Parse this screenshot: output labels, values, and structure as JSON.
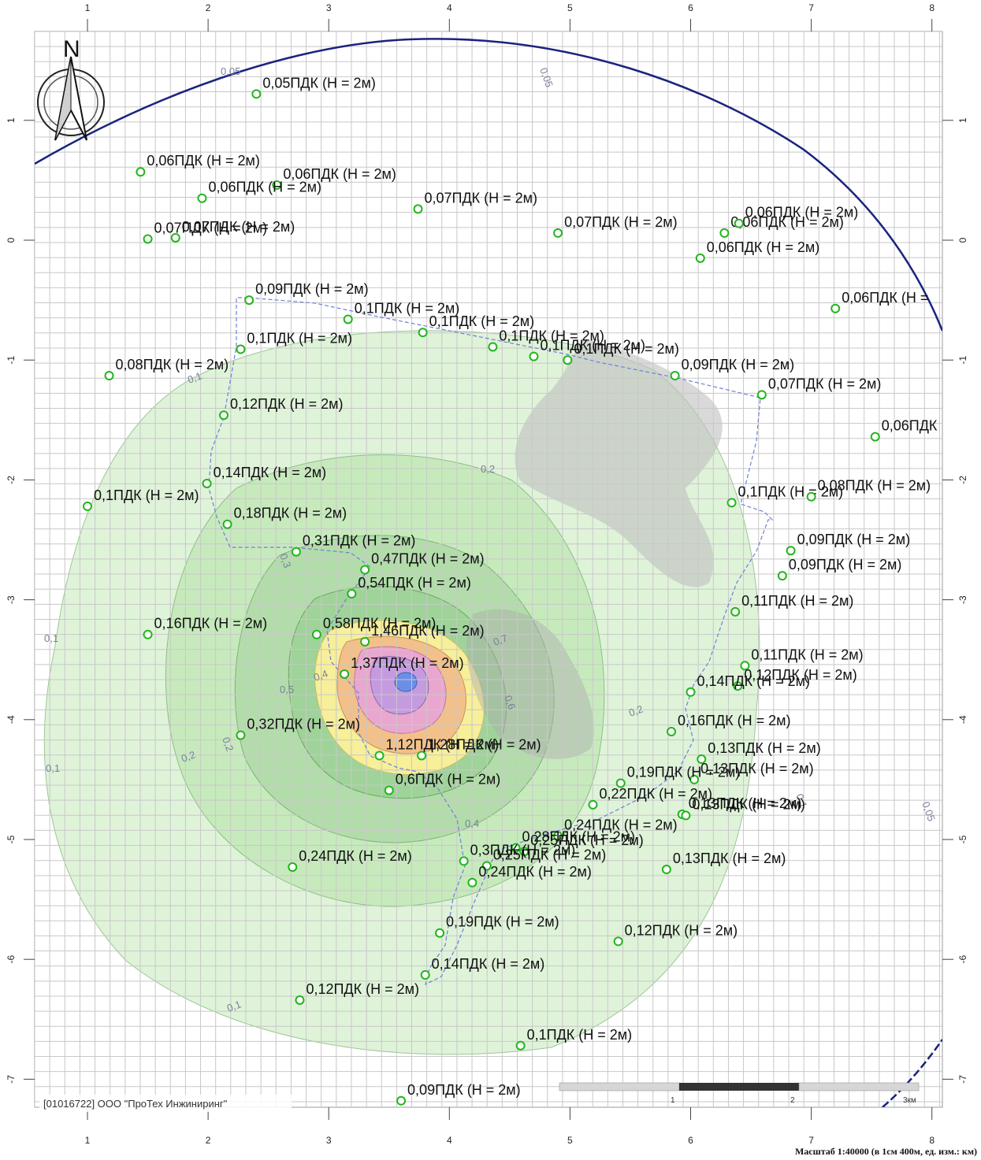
{
  "map": {
    "org_label": "[01016722] ООО \"ПроТех Инжиниринг\"",
    "scale_caption": "Масштаб 1:40000 (в 1см 400м, ед. изм.: км)",
    "north_label": "N",
    "scale_bar": {
      "ticks": [
        "1",
        "2"
      ],
      "unit": "3км"
    },
    "colors": {
      "background": "#ffffff",
      "grid": "#c8c8c8",
      "boundary_line": "#1a237e",
      "marker": "#22b51c",
      "plume_outer": "#dff3d9",
      "plume_mid": "#b7e1b0",
      "plume_yellow": "#f7ef9a",
      "plume_orange": "#f3c089",
      "plume_pink": "#e9a7cf",
      "plume_violet": "#c59be0",
      "plume_blue": "#6b8fe6",
      "shadow_zone": "#bfbfbf"
    }
  },
  "axes": {
    "x_ticks": [
      1,
      2,
      3,
      4,
      5,
      6,
      7,
      8
    ],
    "y_ticks": [
      1,
      0,
      -1,
      -2,
      -3,
      -4,
      -5,
      -6,
      -7
    ]
  },
  "contour_labels": [
    "0,05",
    "0,05",
    "0,1",
    "0,2",
    "0,3",
    "0,4",
    "0,5",
    "0,6",
    "0,7",
    "0,1",
    "0,2",
    "0,2",
    "0,1",
    "0,1",
    "0,2",
    "0,4",
    "0,05",
    "0,1"
  ],
  "points": [
    {
      "label": "0,05ПДК (H = 2м)",
      "x": 2.4,
      "y": 1.22
    },
    {
      "label": "0,06ПДК (H = 2м)",
      "x": 1.44,
      "y": 0.57
    },
    {
      "label": "0,06ПДК (H = 2м)",
      "x": 2.57,
      "y": 0.46
    },
    {
      "label": "0,06ПДК (H = 2м)",
      "x": 1.95,
      "y": 0.35
    },
    {
      "label": "0,07ПДК (H = 2м)",
      "x": 3.74,
      "y": 0.26
    },
    {
      "label": "0,07ПДК (H = 2м)",
      "x": 1.5,
      "y": 0.01
    },
    {
      "label": "0,07ПДК (H = 2м)",
      "x": 1.73,
      "y": 0.02
    },
    {
      "label": "0,07ПДК (H = 2м)",
      "x": 4.9,
      "y": 0.06
    },
    {
      "label": "0,06ПДК (H = 2м)",
      "x": 6.28,
      "y": 0.06
    },
    {
      "label": "0,06ПДК (H = 2м)",
      "x": 6.4,
      "y": 0.14
    },
    {
      "label": "0,06ПДК (H = 2м)",
      "x": 6.08,
      "y": -0.15
    },
    {
      "label": "0,06ПДК (H =",
      "x": 7.2,
      "y": -0.57
    },
    {
      "label": "0,09ПДК (H = 2м)",
      "x": 2.34,
      "y": -0.5
    },
    {
      "label": "0,1ПДК (H = 2м)",
      "x": 3.16,
      "y": -0.66
    },
    {
      "label": "0,1ПДК (H = 2м)",
      "x": 3.78,
      "y": -0.77
    },
    {
      "label": "0,1ПДК (H = 2м)",
      "x": 4.36,
      "y": -0.89
    },
    {
      "label": "0,1ПДК (H = 2м)",
      "x": 4.7,
      "y": -0.97
    },
    {
      "label": "0,1ПДК (H = 2м)",
      "x": 4.98,
      "y": -1.0
    },
    {
      "label": "0,1ПДК (H = 2м)",
      "x": 2.27,
      "y": -0.91
    },
    {
      "label": "0,08ПДК (H = 2м)",
      "x": 1.18,
      "y": -1.13
    },
    {
      "label": "0,09ПДК (H = 2м)",
      "x": 5.87,
      "y": -1.13
    },
    {
      "label": "0,07ПДК (H = 2м)",
      "x": 6.59,
      "y": -1.29
    },
    {
      "label": "0,12ПДК (H = 2м)",
      "x": 2.13,
      "y": -1.46
    },
    {
      "label": "0,06ПДК",
      "x": 7.53,
      "y": -1.64
    },
    {
      "label": "0,14ПДК (H = 2м)",
      "x": 1.99,
      "y": -2.03
    },
    {
      "label": "0,1ПДК (H = 2м)",
      "x": 1.0,
      "y": -2.22
    },
    {
      "label": "0,1ПДК (H = 2м)",
      "x": 6.34,
      "y": -2.19
    },
    {
      "label": "0,08ПДК (H = 2м)",
      "x": 7.0,
      "y": -2.14
    },
    {
      "label": "0,18ПДК (H = 2м)",
      "x": 2.16,
      "y": -2.37
    },
    {
      "label": "0,31ПДК (H = 2м)",
      "x": 2.73,
      "y": -2.6
    },
    {
      "label": "0,09ПДК (H = 2м)",
      "x": 6.83,
      "y": -2.59
    },
    {
      "label": "0,47ПДК (H = 2м)",
      "x": 3.3,
      "y": -2.75
    },
    {
      "label": "0,09ПДК (H = 2м)",
      "x": 6.76,
      "y": -2.8
    },
    {
      "label": "0,54ПДК (H = 2м)",
      "x": 3.19,
      "y": -2.95
    },
    {
      "label": "0,11ПДК (H = 2м)",
      "x": 6.37,
      "y": -3.1
    },
    {
      "label": "0,16ПДК (H = 2м)",
      "x": 1.5,
      "y": -3.29
    },
    {
      "label": "0,58ПДК (H = 2м)",
      "x": 2.9,
      "y": -3.29
    },
    {
      "label": "1,46ПДК (H = 2м)",
      "x": 3.3,
      "y": -3.35
    },
    {
      "label": "0,11ПДК (H = 2м)",
      "x": 6.45,
      "y": -3.55
    },
    {
      "label": "1,37ПДК (H = 2м)",
      "x": 3.13,
      "y": -3.62
    },
    {
      "label": "0,12ПДК (H = 2м)",
      "x": 6.39,
      "y": -3.72
    },
    {
      "label": "0,14ПДК (H = 2м)",
      "x": 6.0,
      "y": -3.77
    },
    {
      "label": "0,32ПДК (H = 2м)",
      "x": 2.27,
      "y": -4.13
    },
    {
      "label": "0,16ПДК (H = 2м)",
      "x": 5.84,
      "y": -4.1
    },
    {
      "label": "1,12ПДК (H = 2м)",
      "x": 3.42,
      "y": -4.3
    },
    {
      "label": "1,28ПДК (H = 2м)",
      "x": 3.77,
      "y": -4.3
    },
    {
      "label": "0,13ПДК (H = 2м)",
      "x": 6.09,
      "y": -4.33
    },
    {
      "label": "0,13ПДК (H = 2м)",
      "x": 6.03,
      "y": -4.5
    },
    {
      "label": "0,6ПДК (H = 2м)",
      "x": 3.5,
      "y": -4.59
    },
    {
      "label": "0,19ПДК (H = 2м)",
      "x": 5.42,
      "y": -4.53
    },
    {
      "label": "0,22ПДК (H = 2м)",
      "x": 5.19,
      "y": -4.71
    },
    {
      "label": "0,13ПДК (H = 2м)",
      "x": 5.93,
      "y": -4.79
    },
    {
      "label": "0,13ПДК (H = 2м)",
      "x": 5.96,
      "y": -4.8
    },
    {
      "label": "0,24ПДК (H = 2м)",
      "x": 4.9,
      "y": -4.97
    },
    {
      "label": "0,28ПДК (H = 2м)",
      "x": 4.55,
      "y": -5.07
    },
    {
      "label": "0,25ПДК (H = 2м)",
      "x": 4.62,
      "y": -5.1
    },
    {
      "label": "0,3ПДК (H = 2м)",
      "x": 4.12,
      "y": -5.18
    },
    {
      "label": "0,25ПДК (H = 2м)",
      "x": 4.31,
      "y": -5.22
    },
    {
      "label": "0,24ПДК (H = 2м)",
      "x": 4.19,
      "y": -5.36
    },
    {
      "label": "0,24ПДК (H = 2м)",
      "x": 2.7,
      "y": -5.23
    },
    {
      "label": "0,13ПДК (H = 2м)",
      "x": 5.8,
      "y": -5.25
    },
    {
      "label": "0,19ПДК (H = 2м)",
      "x": 3.92,
      "y": -5.78
    },
    {
      "label": "0,12ПДК (H = 2м)",
      "x": 5.4,
      "y": -5.85
    },
    {
      "label": "0,14ПДК (H = 2м)",
      "x": 3.8,
      "y": -6.13
    },
    {
      "label": "0,12ПДК (H = 2м)",
      "x": 2.76,
      "y": -6.34
    },
    {
      "label": "0,1ПДК (H = 2м)",
      "x": 4.59,
      "y": -6.72
    },
    {
      "label": "0,09ПДК (H = 2м)",
      "x": 3.6,
      "y": -7.18
    }
  ]
}
